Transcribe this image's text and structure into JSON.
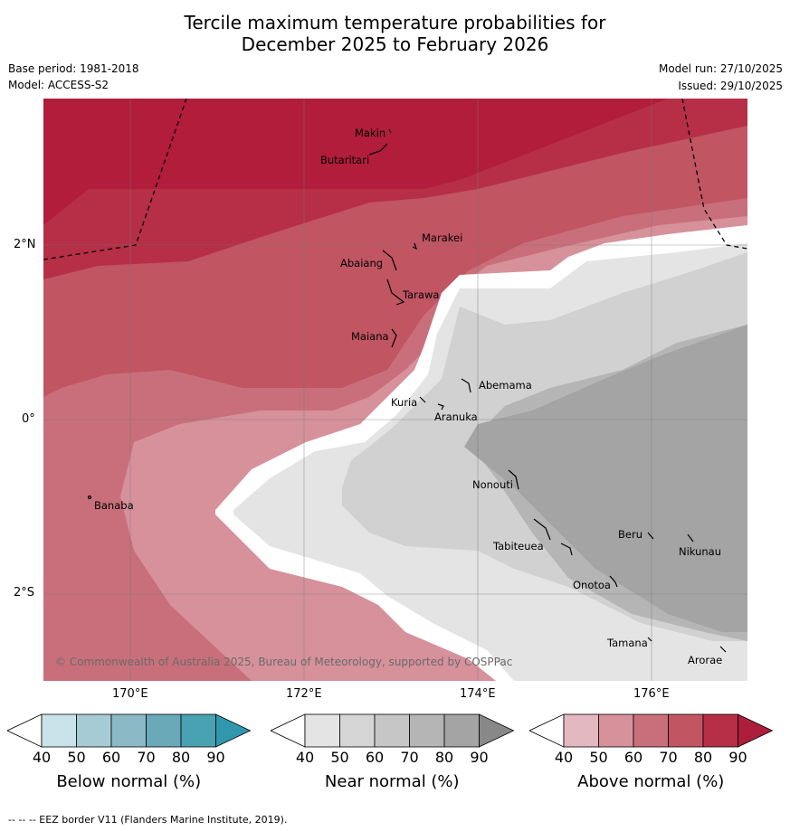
{
  "title": {
    "line1": "Tercile maximum temperature probabilities for",
    "line2": "December 2025 to February 2026"
  },
  "meta": {
    "base_period": "Base period: 1981-2018",
    "model": "Model: ACCESS-S2",
    "model_run": "Model run: 27/10/2025",
    "issued": "Issued: 29/10/2025"
  },
  "axes": {
    "lon_labels": [
      "170°E",
      "172°E",
      "174°E",
      "176°E"
    ],
    "lat_labels": [
      "2°N",
      "0°",
      "2°S"
    ]
  },
  "places": [
    "Makin",
    "Butaritari",
    "Marakei",
    "Abaiang",
    "Tarawa",
    "Maiana",
    "Abemama",
    "Kuria",
    "Aranuka",
    "Banaba",
    "Nonouti",
    "Tabiteuea",
    "Beru",
    "Nikunau",
    "Onotoa",
    "Tamana",
    "Arorae"
  ],
  "copyright": "© Commonwealth of Australia 2025, Bureau of Meteorology, supported by COSPPac",
  "colorbars": [
    {
      "label": "Below normal (%)",
      "ticks": [
        "40",
        "50",
        "60",
        "70",
        "80",
        "90"
      ],
      "colors": [
        "#ffffff",
        "#cae3ea",
        "#a6cbd4",
        "#8bb9c6",
        "#6aa9b8",
        "#48a2b2",
        "#2f98ad"
      ]
    },
    {
      "label": "Near normal (%)",
      "ticks": [
        "40",
        "50",
        "60",
        "70",
        "80",
        "90"
      ],
      "colors": [
        "#ffffff",
        "#e4e4e4",
        "#d5d5d5",
        "#c6c6c6",
        "#b5b5b5",
        "#a4a4a4",
        "#888888"
      ]
    },
    {
      "label": "Above normal (%)",
      "ticks": [
        "40",
        "50",
        "60",
        "70",
        "80",
        "90"
      ],
      "colors": [
        "#ffffff",
        "#e4b8c0",
        "#d6919b",
        "#c96f7b",
        "#c15562",
        "#b62f46",
        "#ad1d3c"
      ]
    }
  ],
  "footer": "--  --  -- EEZ border V11 (Flanders Marine Institute, 2019)."
}
